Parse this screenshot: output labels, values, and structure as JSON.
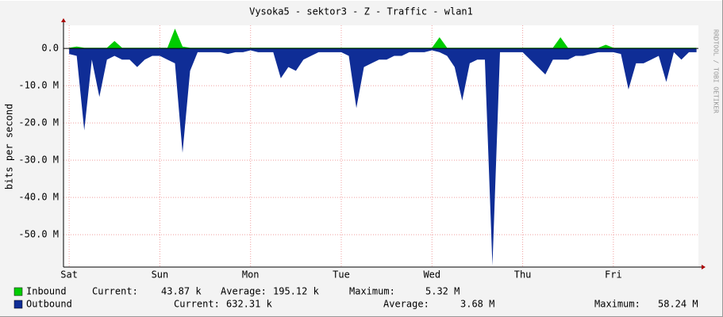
{
  "chart_data": {
    "type": "area",
    "title": "Vysoka5 - sektor3 - Z - Traffic - wlan1",
    "y_label": "bits per second",
    "watermark": "RRDTOOL / TOBI OETIKER",
    "xlim": [
      -1.5,
      166.5
    ],
    "xticks": [
      {
        "value": 0,
        "label": "Sat"
      },
      {
        "value": 24,
        "label": "Sun"
      },
      {
        "value": 48,
        "label": "Mon"
      },
      {
        "value": 72,
        "label": "Tue"
      },
      {
        "value": 96,
        "label": "Wed"
      },
      {
        "value": 120,
        "label": "Thu"
      },
      {
        "value": 144,
        "label": "Fri"
      }
    ],
    "ylim": [
      -58700000,
      6200000
    ],
    "yticks": [
      {
        "value": 0,
        "label": "0.0"
      },
      {
        "value": -10000000,
        "label": "-10.0 M"
      },
      {
        "value": -20000000,
        "label": "-20.0 M"
      },
      {
        "value": -30000000,
        "label": "-30.0 M"
      },
      {
        "value": -40000000,
        "label": "-40.0 M"
      },
      {
        "value": -50000000,
        "label": "-50.0 M"
      }
    ],
    "grid": true,
    "x": [
      0,
      2,
      4,
      6,
      8,
      10,
      12,
      14,
      16,
      18,
      20,
      22,
      24,
      26,
      28,
      30,
      32,
      34,
      36,
      38,
      40,
      42,
      44,
      46,
      48,
      50,
      52,
      54,
      56,
      58,
      60,
      62,
      64,
      66,
      68,
      70,
      72,
      74,
      76,
      78,
      80,
      82,
      84,
      86,
      88,
      90,
      92,
      94,
      96,
      98,
      100,
      102,
      104,
      106,
      108,
      110,
      112,
      114,
      116,
      118,
      120,
      122,
      124,
      126,
      128,
      130,
      132,
      134,
      136,
      138,
      140,
      142,
      144,
      146,
      148,
      150,
      152,
      154,
      156,
      158,
      160,
      162,
      164,
      166
    ],
    "series": [
      {
        "name": "Outbound",
        "color": "#0f2d96",
        "values": [
          -1500000,
          -2000000,
          -22000000,
          -3000000,
          -13000000,
          -3000000,
          -2000000,
          -3000000,
          -3000000,
          -5000000,
          -3000000,
          -2000000,
          -2000000,
          -3000000,
          -4000000,
          -28000000,
          -6000000,
          -1000000,
          -1000000,
          -1000000,
          -1000000,
          -1500000,
          -1000000,
          -1000000,
          -500000,
          -1000000,
          -1000000,
          -1000000,
          -8000000,
          -5000000,
          -6000000,
          -3000000,
          -2000000,
          -1000000,
          -1000000,
          -1000000,
          -1000000,
          -2000000,
          -16000000,
          -5000000,
          -4000000,
          -3000000,
          -3000000,
          -2000000,
          -2000000,
          -1000000,
          -1000000,
          -1000000,
          -500000,
          -1000000,
          -2000000,
          -5000000,
          -14000000,
          -4000000,
          -3000000,
          -3000000,
          -58240000,
          -1000000,
          -1000000,
          -1000000,
          -1000000,
          -3000000,
          -5000000,
          -7000000,
          -3000000,
          -3000000,
          -3000000,
          -2000000,
          -2000000,
          -1500000,
          -1000000,
          -1000000,
          -1000000,
          -1500000,
          -11000000,
          -4000000,
          -4000000,
          -3000000,
          -2000000,
          -9000000,
          -1000000,
          -3000000,
          -1000000,
          -1000000
        ],
        "stats": [
          {
            "label": "Current:",
            "value": "632.31 k"
          },
          {
            "label": "Average:",
            "value": "3.68 M"
          },
          {
            "label": "Maximum:",
            "value": "58.24 M"
          }
        ]
      },
      {
        "name": "Inbound",
        "color": "#00cc00",
        "values": [
          200000,
          500000,
          200000,
          200000,
          200000,
          200000,
          2000000,
          200000,
          200000,
          200000,
          200000,
          200000,
          200000,
          200000,
          5320000,
          500000,
          200000,
          200000,
          200000,
          200000,
          200000,
          200000,
          200000,
          200000,
          200000,
          200000,
          200000,
          200000,
          200000,
          200000,
          200000,
          200000,
          200000,
          200000,
          200000,
          200000,
          200000,
          200000,
          200000,
          200000,
          200000,
          200000,
          200000,
          200000,
          200000,
          200000,
          200000,
          200000,
          200000,
          3000000,
          200000,
          200000,
          200000,
          200000,
          200000,
          200000,
          200000,
          200000,
          200000,
          200000,
          200000,
          200000,
          200000,
          200000,
          200000,
          3000000,
          200000,
          200000,
          200000,
          200000,
          200000,
          1000000,
          200000,
          200000,
          200000,
          200000,
          200000,
          200000,
          200000,
          200000,
          200000,
          200000,
          200000,
          200000
        ],
        "stats": [
          {
            "label": "Current:",
            "value": "43.87 k"
          },
          {
            "label": "Average:",
            "value": "195.12 k"
          },
          {
            "label": "Maximum:",
            "value": "5.32 M"
          }
        ]
      }
    ]
  }
}
